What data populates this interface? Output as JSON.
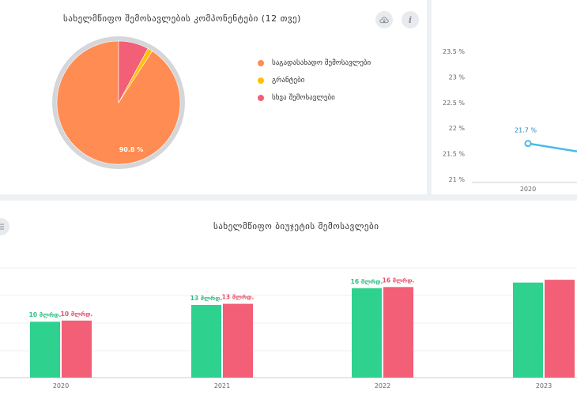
{
  "pie_card": {
    "title": "სახელმწიფო შემოსავლების კომპონენტები (12 თვე)",
    "legend": [
      {
        "label": "საგადასახადო შემოსავლები",
        "color": "#ff8c52"
      },
      {
        "label": "გრანტები",
        "color": "#ffc107"
      },
      {
        "label": "სხვა შემოსავლები",
        "color": "#f25f76"
      }
    ]
  },
  "bar_card": {
    "title": "სახელმწიფო ბიუჯეტის შემოსავლები"
  },
  "colors": {
    "green": "#2fd18f",
    "red": "#f25f76",
    "line": "#4cb9ea",
    "orange": "#ff8c52",
    "yellow": "#ffc107"
  },
  "chart_data": [
    {
      "type": "pie",
      "title": "სახელმწიფო შემოსავლების კომპონენტები (12 თვე)",
      "slices": [
        {
          "label": "საგადასახადო შემოსავლები",
          "value": 90.8,
          "display": "90.8 %"
        },
        {
          "label": "გრანტები",
          "value": 1.3,
          "display": ""
        },
        {
          "label": "სხვა შემოსავლები",
          "value": 7.9,
          "display": ""
        }
      ]
    },
    {
      "type": "line",
      "x": [
        "2020"
      ],
      "series": [
        {
          "values": [
            21.7
          ],
          "labels": [
            "21.7 %"
          ]
        }
      ],
      "y_ticks": [
        "23.5 %",
        "23 %",
        "22.5 %",
        "22 %",
        "21.5 %",
        "21 %"
      ],
      "ylim": [
        21,
        23.5
      ]
    },
    {
      "type": "bar",
      "title": "სახელმწიფო ბიუჯეტის შემოსავლები",
      "categories": [
        "2020",
        "2021",
        "2022",
        "2023"
      ],
      "series": [
        {
          "values": [
            10,
            13,
            16,
            17
          ],
          "labels": [
            "10 მლრდ.",
            "13 მლრდ.",
            "16 მლრდ.",
            ""
          ]
        },
        {
          "values": [
            10.2,
            13.2,
            16.2,
            17.5
          ],
          "labels": [
            "10 მლრდ.",
            "13 მლრდ.",
            "16 მლრდ.",
            ""
          ]
        }
      ],
      "ylim": [
        0,
        20
      ]
    }
  ]
}
